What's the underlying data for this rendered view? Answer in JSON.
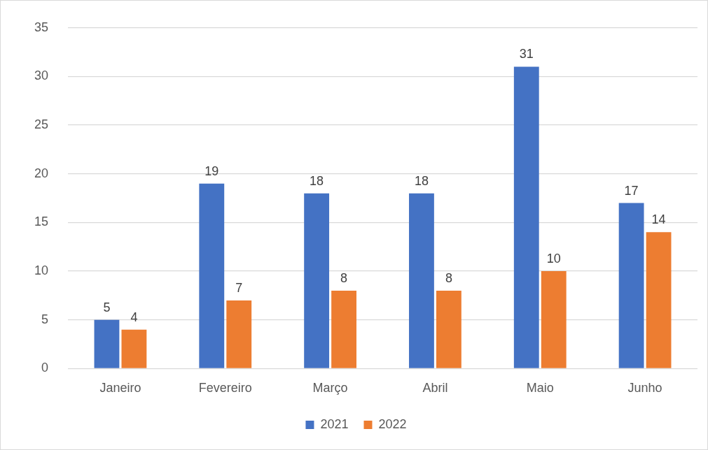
{
  "chart_data": {
    "type": "bar",
    "categories": [
      "Janeiro",
      "Fevereiro",
      "Março",
      "Abril",
      "Maio",
      "Junho"
    ],
    "series": [
      {
        "name": "2021",
        "color": "#4472c4",
        "values": [
          5,
          19,
          18,
          18,
          31,
          17
        ]
      },
      {
        "name": "2022",
        "color": "#ed7d31",
        "values": [
          4,
          7,
          8,
          8,
          10,
          14
        ]
      }
    ],
    "ylim": [
      0,
      35
    ],
    "yticks": [
      0,
      5,
      10,
      15,
      20,
      25,
      30,
      35
    ],
    "grid": "y",
    "legend": "bottom",
    "data_labels": true
  }
}
